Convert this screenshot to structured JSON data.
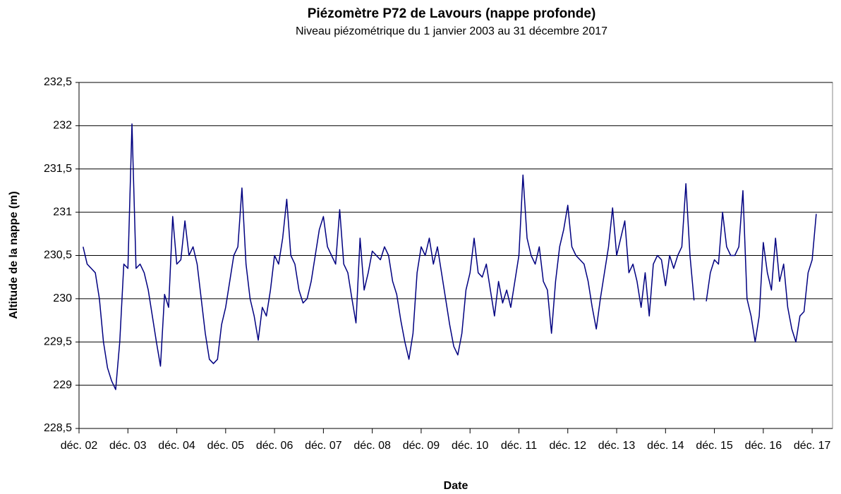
{
  "chart_data": {
    "type": "line",
    "title": "Piézomètre P72 de Lavours (nappe profonde)",
    "subtitle": "Niveau piézométrique du 1 janvier 2003 au 31 décembre 2017",
    "x_label": "Date",
    "y_label": "Altitude de la nappe (m)",
    "x": [
      1,
      2,
      3,
      4,
      5,
      6,
      7,
      8,
      9,
      10,
      11,
      12,
      13,
      14,
      15,
      16,
      17,
      18,
      19,
      20,
      21,
      22,
      23,
      24,
      25,
      26,
      27,
      28,
      29,
      30,
      31,
      32,
      33,
      34,
      35,
      36,
      37,
      38,
      39,
      40,
      41,
      42,
      43,
      44,
      45,
      46,
      47,
      48,
      49,
      50,
      51,
      52,
      53,
      54,
      55,
      56,
      57,
      58,
      59,
      60,
      61,
      62,
      63,
      64,
      65,
      66,
      67,
      68,
      69,
      70,
      71,
      72,
      73,
      74,
      75,
      76,
      77,
      78,
      79,
      80,
      81,
      82,
      83,
      84,
      85,
      86,
      87,
      88,
      89,
      90,
      91,
      92,
      93,
      94,
      95,
      96,
      97,
      98,
      99,
      100,
      101,
      102,
      103,
      104,
      105,
      106,
      107,
      108,
      109,
      110,
      111,
      112,
      113,
      114,
      115,
      116,
      117,
      118,
      119,
      120,
      121,
      122,
      123,
      124,
      125,
      126,
      127,
      128,
      129,
      130,
      131,
      132,
      133,
      134,
      135,
      136,
      137,
      138,
      139,
      140,
      141,
      142,
      143,
      144,
      145,
      146,
      147,
      148,
      149,
      150,
      151,
      152,
      153,
      154,
      155,
      156,
      157,
      158,
      159,
      160,
      161,
      162,
      163,
      164,
      165,
      166,
      167,
      168,
      169,
      170,
      171,
      172,
      173,
      174,
      175,
      176,
      177,
      178,
      179,
      180,
      181
    ],
    "series": [
      {
        "color": "#000080",
        "values": [
          230.6,
          230.4,
          230.35,
          230.3,
          230.0,
          229.5,
          229.2,
          229.05,
          228.95,
          229.5,
          230.4,
          230.35,
          232.02,
          230.35,
          230.4,
          230.3,
          230.1,
          229.8,
          229.5,
          229.22,
          230.05,
          229.9,
          230.95,
          230.4,
          230.45,
          230.9,
          230.5,
          230.6,
          230.4,
          230.0,
          229.6,
          229.3,
          229.25,
          229.3,
          229.7,
          229.9,
          230.2,
          230.5,
          230.6,
          231.28,
          230.4,
          230.0,
          229.8,
          229.52,
          229.9,
          229.8,
          230.1,
          230.5,
          230.4,
          230.7,
          231.15,
          230.5,
          230.4,
          230.1,
          229.95,
          230.0,
          230.2,
          230.5,
          230.8,
          230.95,
          230.6,
          230.5,
          230.4,
          231.03,
          230.4,
          230.3,
          230.0,
          229.72,
          230.7,
          230.1,
          230.3,
          230.55,
          230.5,
          230.45,
          230.6,
          230.5,
          230.2,
          230.05,
          229.75,
          229.5,
          229.3,
          229.6,
          230.3,
          230.6,
          230.5,
          230.7,
          230.4,
          230.6,
          230.3,
          230.0,
          229.7,
          229.45,
          229.35,
          229.6,
          230.1,
          230.3,
          230.7,
          230.3,
          230.25,
          230.4,
          230.1,
          229.8,
          230.2,
          229.95,
          230.1,
          229.9,
          230.2,
          230.5,
          231.43,
          230.7,
          230.5,
          230.4,
          230.6,
          230.2,
          230.1,
          229.6,
          230.2,
          230.6,
          230.8,
          231.08,
          230.6,
          230.5,
          230.45,
          230.4,
          230.2,
          229.9,
          229.65,
          230.0,
          230.3,
          230.6,
          231.05,
          230.5,
          230.7,
          230.9,
          230.3,
          230.4,
          230.2,
          229.9,
          230.3,
          229.8,
          230.4,
          230.5,
          230.45,
          230.15,
          230.5,
          230.35,
          230.5,
          230.6,
          231.33,
          230.5,
          229.98,
          null,
          null,
          229.97,
          230.3,
          230.45,
          230.4,
          231.0,
          230.6,
          230.5,
          230.5,
          230.6,
          231.25,
          230.0,
          229.8,
          229.5,
          229.8,
          230.65,
          230.3,
          230.1,
          230.7,
          230.2,
          230.4,
          229.9,
          229.65,
          229.5,
          229.8,
          229.85,
          230.3,
          230.45,
          230.98
        ]
      }
    ],
    "xlim": [
      0,
      185
    ],
    "xticks": [
      {
        "value": 0,
        "label": "déc. 02"
      },
      {
        "value": 12,
        "label": "déc. 03"
      },
      {
        "value": 24,
        "label": "déc. 04"
      },
      {
        "value": 36,
        "label": "déc. 05"
      },
      {
        "value": 48,
        "label": "déc. 06"
      },
      {
        "value": 60,
        "label": "déc. 07"
      },
      {
        "value": 72,
        "label": "déc. 08"
      },
      {
        "value": 84,
        "label": "déc. 09"
      },
      {
        "value": 96,
        "label": "déc. 10"
      },
      {
        "value": 108,
        "label": "déc. 11"
      },
      {
        "value": 120,
        "label": "déc. 12"
      },
      {
        "value": 132,
        "label": "déc. 13"
      },
      {
        "value": 144,
        "label": "déc. 14"
      },
      {
        "value": 156,
        "label": "déc. 15"
      },
      {
        "value": 168,
        "label": "déc. 16"
      },
      {
        "value": 180,
        "label": "déc. 17"
      }
    ],
    "ylim": [
      228.5,
      232.5
    ],
    "yticks": [
      {
        "value": 228.5,
        "label": "228,5"
      },
      229,
      {
        "value": 229.5,
        "label": "229,5"
      },
      230,
      {
        "value": 230.5,
        "label": "230,5"
      },
      231,
      {
        "value": 231.5,
        "label": "231,5"
      },
      232,
      {
        "value": 232.5,
        "label": "232,5"
      }
    ],
    "grid": true
  }
}
